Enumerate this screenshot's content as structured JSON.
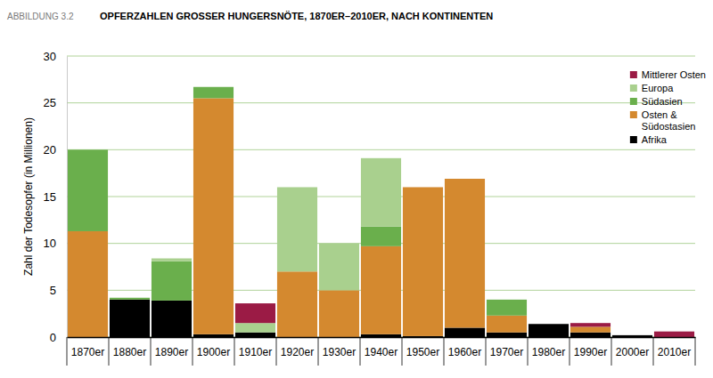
{
  "chart_data": {
    "type": "bar",
    "subtitle": "ABBILDUNG 3.2",
    "title": "OPFERZAHLEN GROSSER HUNGERSNÖTE, 1870ER–2010ER, NACH KONTINENTEN",
    "y_label": "Zahl der Todesopfer (in Millionen)",
    "categories": [
      "1870er",
      "1880er",
      "1890er",
      "1900er",
      "1910er",
      "1920er",
      "1930er",
      "1940er",
      "1950er",
      "1960er",
      "1970er",
      "1980er",
      "1990er",
      "2000er",
      "2010er"
    ],
    "series": [
      {
        "name": "Afrika",
        "color": "#000000",
        "values": [
          0,
          4.0,
          3.9,
          0.3,
          0.5,
          0,
          0,
          0.3,
          0.1,
          1.0,
          0.5,
          1.4,
          0.5,
          0.2,
          0
        ]
      },
      {
        "name": "Osten & Südostasien",
        "color": "#d4892f",
        "values": [
          11.3,
          0,
          0,
          25.2,
          0,
          7.0,
          5.0,
          9.4,
          15.9,
          15.9,
          1.8,
          0,
          0.6,
          0,
          0
        ]
      },
      {
        "name": "Südasien",
        "color": "#6aaf4c",
        "values": [
          8.7,
          0.2,
          4.2,
          1.2,
          0,
          0,
          0,
          2.1,
          0,
          0,
          1.7,
          0,
          0,
          0,
          0
        ]
      },
      {
        "name": "Europa",
        "color": "#a9d08e",
        "values": [
          0,
          0,
          0.3,
          0,
          1.0,
          9.0,
          5.0,
          7.3,
          0,
          0,
          0,
          0,
          0,
          0,
          0
        ]
      },
      {
        "name": "Mittlerer Osten",
        "color": "#9b1b45",
        "values": [
          0,
          0,
          0,
          0,
          2.1,
          0,
          0,
          0,
          0,
          0,
          0,
          0,
          0.4,
          0,
          0.6
        ]
      }
    ],
    "ylim": [
      0,
      30
    ],
    "yticks": [
      0,
      5,
      10,
      15,
      20,
      25,
      30
    ],
    "stacked": true,
    "grid": true,
    "legend": "upper right"
  }
}
